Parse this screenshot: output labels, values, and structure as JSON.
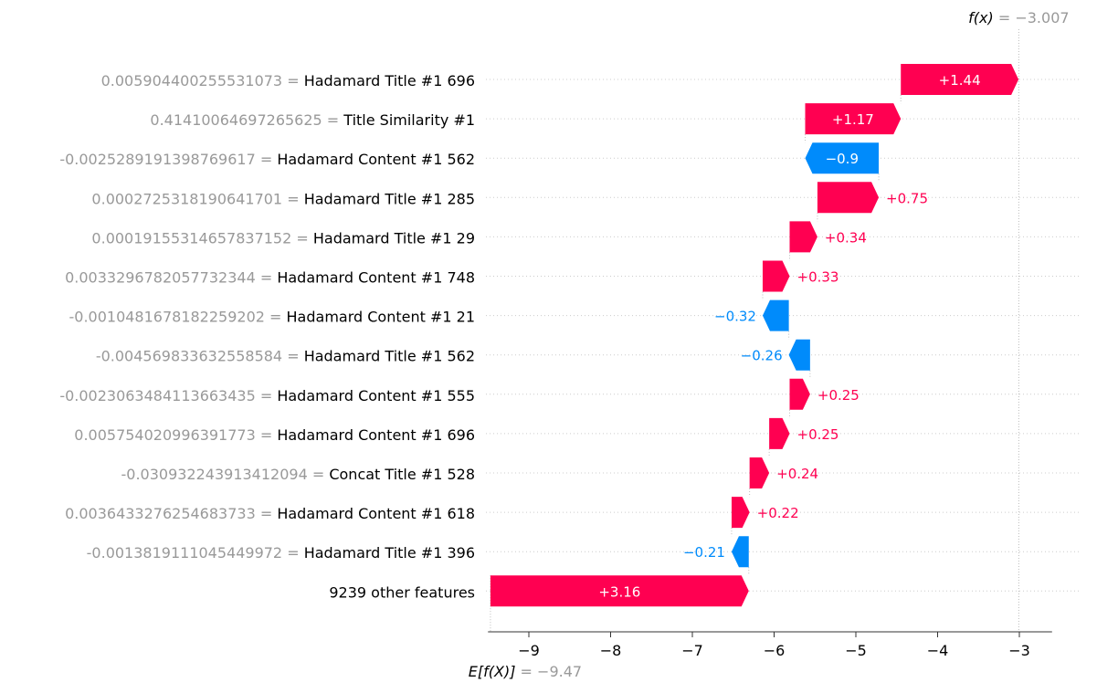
{
  "chart_data": {
    "type": "bar",
    "subtype": "waterfall",
    "base_value": -9.47,
    "output_value": -3.007,
    "base_label": {
      "text": "E[f(X)]",
      "value_text": "= −9.47"
    },
    "output_label": {
      "text": "f(x)",
      "value_text": "= −3.007"
    },
    "features": [
      {
        "value": "0.005904400255531073",
        "name": "Hadamard Title #1 696",
        "contribution": 1.44,
        "label": "+1.44"
      },
      {
        "value": "0.41410064697265625",
        "name": "Title Similarity #1",
        "contribution": 1.17,
        "label": "+1.17"
      },
      {
        "value": "-0.0025289191398769617",
        "name": "Hadamard Content #1 562",
        "contribution": -0.9,
        "label": "−0.9"
      },
      {
        "value": "0.0002725318190641701",
        "name": "Hadamard Title #1 285",
        "contribution": 0.75,
        "label": "+0.75"
      },
      {
        "value": "0.00019155314657837152",
        "name": "Hadamard Title #1 29",
        "contribution": 0.34,
        "label": "+0.34"
      },
      {
        "value": "0.0033296782057732344",
        "name": "Hadamard Content #1 748",
        "contribution": 0.33,
        "label": "+0.33"
      },
      {
        "value": "-0.0010481678182259202",
        "name": "Hadamard Content #1 21",
        "contribution": -0.32,
        "label": "−0.32"
      },
      {
        "value": "-0.004569833632558584",
        "name": "Hadamard Title #1 562",
        "contribution": -0.26,
        "label": "−0.26"
      },
      {
        "value": "-0.0023063484113663435",
        "name": "Hadamard Content #1 555",
        "contribution": 0.25,
        "label": "+0.25"
      },
      {
        "value": "0.005754020996391773",
        "name": "Hadamard Content #1 696",
        "contribution": 0.25,
        "label": "+0.25"
      },
      {
        "value": "-0.030932243913412094",
        "name": "Concat Title #1 528",
        "contribution": 0.24,
        "label": "+0.24"
      },
      {
        "value": "0.0036433276254683733",
        "name": "Hadamard Content #1 618",
        "contribution": 0.22,
        "label": "+0.22"
      },
      {
        "value": "-0.0013819111045449972",
        "name": "Hadamard Title #1 396",
        "contribution": -0.21,
        "label": "−0.21"
      },
      {
        "value": "",
        "name": "9239 other features",
        "contribution": 3.16,
        "label": "+3.16"
      }
    ],
    "x_ticks": [
      {
        "v": -9,
        "label": "−9"
      },
      {
        "v": -8,
        "label": "−8"
      },
      {
        "v": -7,
        "label": "−7"
      },
      {
        "v": -6,
        "label": "−6"
      },
      {
        "v": -5,
        "label": "−5"
      },
      {
        "v": -4,
        "label": "−4"
      },
      {
        "v": -3,
        "label": "−3"
      }
    ],
    "xlim": [
      -9.5,
      -2.6
    ],
    "colors": {
      "positive": "#ff0051",
      "negative": "#008bfb"
    }
  }
}
